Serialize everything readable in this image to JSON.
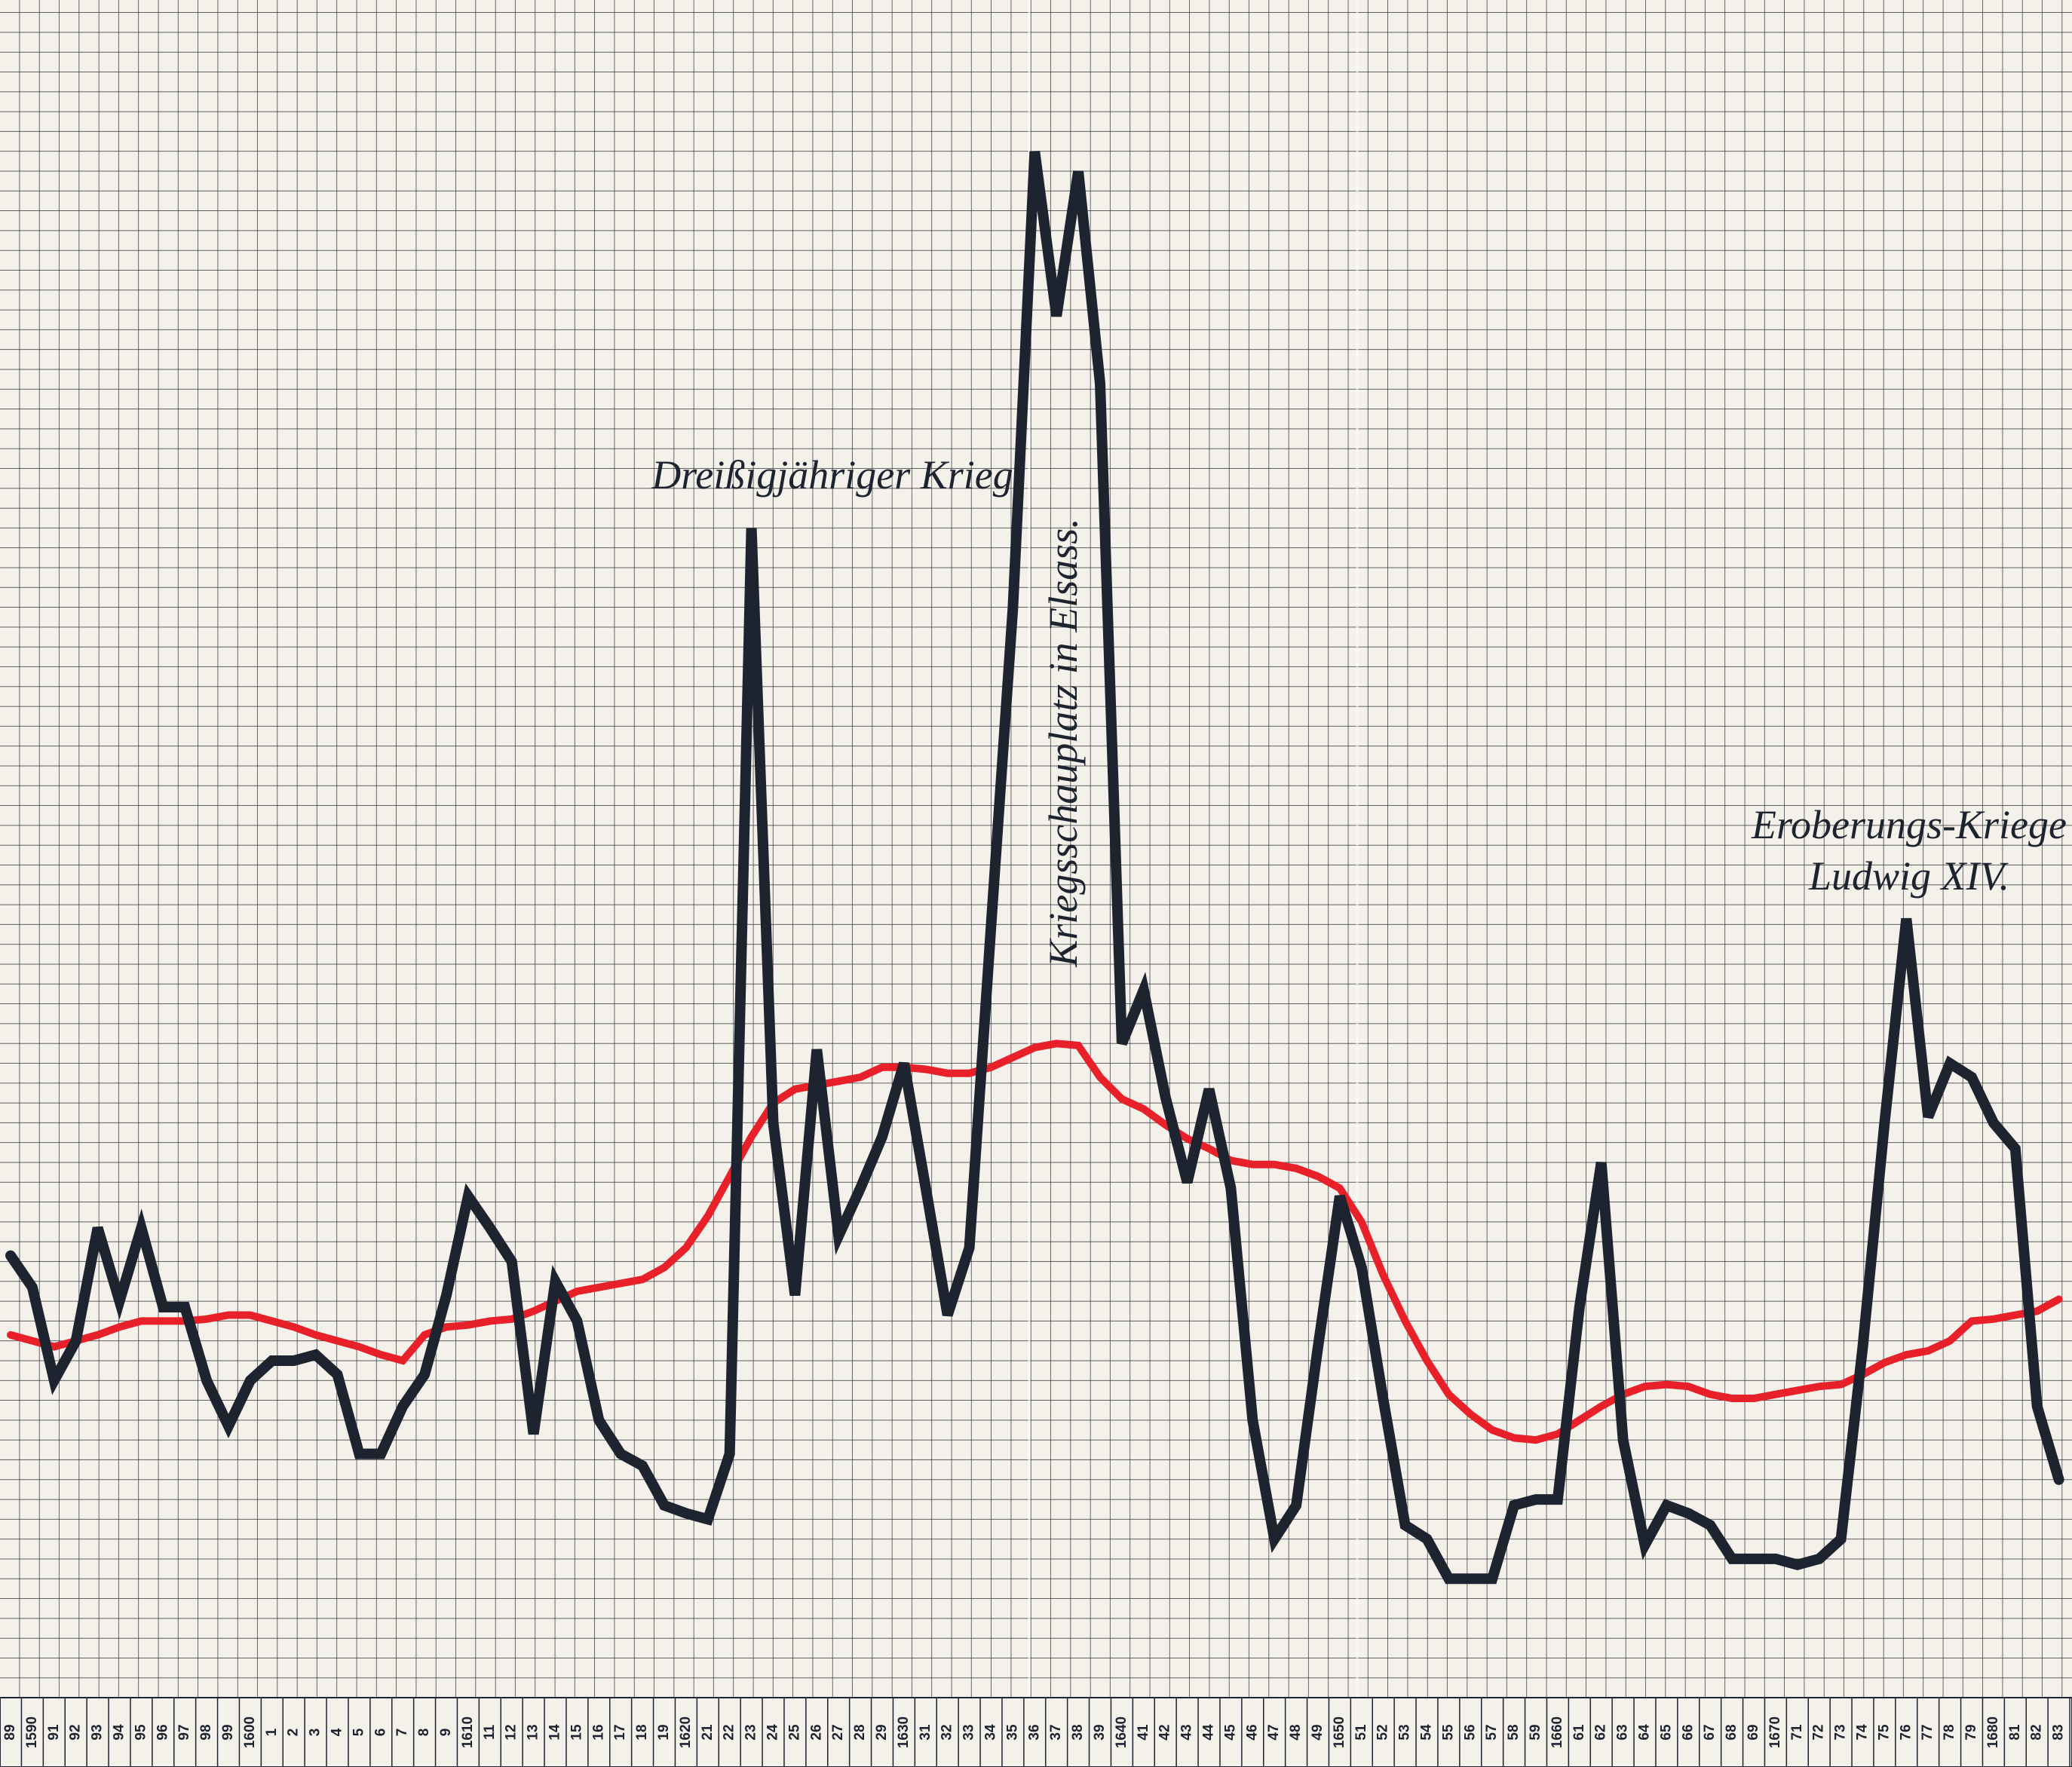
{
  "chart_data": {
    "type": "line",
    "categories": [
      "89",
      "1590",
      "91",
      "92",
      "93",
      "94",
      "95",
      "96",
      "97",
      "98",
      "99",
      "1600",
      "1",
      "2",
      "3",
      "4",
      "5",
      "6",
      "7",
      "8",
      "9",
      "1610",
      "11",
      "12",
      "13",
      "14",
      "15",
      "16",
      "17",
      "18",
      "19",
      "1620",
      "21",
      "22",
      "23",
      "24",
      "25",
      "26",
      "27",
      "28",
      "29",
      "1630",
      "31",
      "32",
      "33",
      "34",
      "35",
      "36",
      "37",
      "38",
      "39",
      "1640",
      "41",
      "42",
      "43",
      "44",
      "45",
      "46",
      "47",
      "48",
      "49",
      "1650",
      "51",
      "52",
      "53",
      "54",
      "55",
      "56",
      "57",
      "58",
      "59",
      "1660",
      "61",
      "62",
      "63",
      "64",
      "65",
      "66",
      "67",
      "68",
      "69",
      "1670",
      "71",
      "72",
      "73",
      "74",
      "75",
      "76",
      "77",
      "78",
      "79",
      "1680",
      "81",
      "82",
      "83"
    ],
    "series": [
      {
        "color": "#1e2330",
        "values": [
          22.3,
          20.7,
          16,
          18,
          23.7,
          20,
          23.7,
          19.7,
          19.7,
          16,
          13.7,
          16,
          17,
          17,
          17.3,
          16.3,
          12.3,
          12.3,
          14.7,
          16.3,
          20.3,
          25.3,
          23.7,
          22,
          13.3,
          21,
          19,
          14,
          12.3,
          11.7,
          9.7,
          9.3,
          9,
          12.3,
          59,
          29,
          20.3,
          32.7,
          23.3,
          25.7,
          28.3,
          32,
          25.7,
          19.3,
          22.7,
          39,
          55,
          78,
          69.7,
          77,
          66.3,
          33,
          35.7,
          30.3,
          26,
          30.7,
          25.7,
          14,
          8,
          9.7,
          17.7,
          25.3,
          21.7,
          15,
          8.7,
          8,
          6,
          6,
          6,
          9.7,
          10,
          10,
          19.7,
          27,
          13,
          7.7,
          9.7,
          9.3,
          8.7,
          7,
          7,
          7,
          6.7,
          7,
          8,
          17.7,
          29,
          39.3,
          29.3,
          32,
          31.3,
          29,
          27.7,
          14.7,
          11
        ]
      },
      {
        "color": "#e8202a",
        "values": [
          18.3,
          18,
          17.7,
          18,
          18.3,
          18.7,
          19,
          19,
          19,
          19.1,
          19.3,
          19.3,
          19,
          18.7,
          18.3,
          18,
          17.7,
          17.3,
          17,
          18.3,
          18.7,
          18.8,
          19,
          19.1,
          19.5,
          20,
          20.5,
          20.7,
          20.9,
          21.1,
          21.7,
          22.7,
          24.3,
          26.3,
          28.3,
          30,
          30.7,
          30.9,
          31.1,
          31.3,
          31.8,
          31.8,
          31.7,
          31.5,
          31.5,
          31.8,
          32.3,
          32.8,
          33,
          32.9,
          31.3,
          30.2,
          29.7,
          28.9,
          28.2,
          27.7,
          27.1,
          26.9,
          26.9,
          26.7,
          26.3,
          25.7,
          24,
          21.3,
          19,
          17,
          15.3,
          14.3,
          13.5,
          13.1,
          13,
          13.3,
          14,
          14.7,
          15.3,
          15.7,
          15.8,
          15.7,
          15.3,
          15.1,
          15.1,
          15.3,
          15.5,
          15.7,
          15.8,
          16.3,
          16.9,
          17.3,
          17.5,
          18,
          19,
          19.1,
          19.3,
          19.5,
          20.1
        ]
      }
    ],
    "ylim": [
      0,
      85
    ],
    "annotations": [
      "Dreißigjähriger Krieg",
      "Kriegsschauplatz in Elsass.",
      "Eroberungs-Kriege",
      "Ludwig XIV."
    ]
  }
}
